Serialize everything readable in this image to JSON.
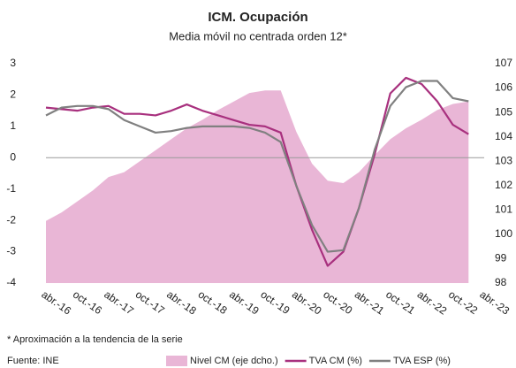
{
  "chart_data": {
    "type": "line",
    "title": "ICM. Ocupación",
    "subtitle": "Media móvil no centrada orden 12*",
    "note": "* Aproximación a la tendencia de la serie",
    "source": "Fuente: INE",
    "categories": [
      "abr.-16",
      null,
      "oct.-16",
      null,
      "abr.-17",
      null,
      "oct.-17",
      null,
      "abr.-18",
      null,
      "oct.-18",
      null,
      "abr.-19",
      null,
      "oct.-19",
      null,
      "abr.-20",
      null,
      "oct.-20",
      null,
      "abr.-21",
      null,
      "oct.-21",
      null,
      "abr.-22",
      null,
      "oct.-22",
      null,
      "abr.-23"
    ],
    "ylim": [
      -4,
      3
    ],
    "yticks": [
      -4,
      -3,
      -2,
      -1,
      0,
      1,
      2,
      3
    ],
    "y2lim": [
      98,
      107
    ],
    "y2ticks": [
      98,
      99,
      100,
      101,
      102,
      103,
      104,
      105,
      106,
      107
    ],
    "legend": "bottom",
    "series": [
      {
        "name": "Nivel CM (eje dcho.)",
        "type": "area",
        "axis": "y2",
        "color": "#e9b6d6",
        "values": [
          100.55,
          100.9,
          101.35,
          101.8,
          102.35,
          102.55,
          103.0,
          103.45,
          103.9,
          104.35,
          104.7,
          105.1,
          105.45,
          105.8,
          105.9,
          105.9,
          104.2,
          102.9,
          102.2,
          102.1,
          102.55,
          103.25,
          103.9,
          104.35,
          104.7,
          105.1,
          105.35,
          105.45,
          null
        ]
      },
      {
        "name": "TVA CM (%)",
        "type": "line",
        "color": "#a8307e",
        "values": [
          1.6,
          1.55,
          1.5,
          1.6,
          1.65,
          1.4,
          1.4,
          1.35,
          1.5,
          1.7,
          1.5,
          1.35,
          1.2,
          1.05,
          1.0,
          0.8,
          -0.9,
          -2.3,
          -3.45,
          -3.0,
          -1.6,
          0.1,
          2.05,
          2.55,
          2.35,
          1.8,
          1.05,
          0.75,
          null
        ]
      },
      {
        "name": "TVA ESP (%)",
        "type": "line",
        "color": "#808080",
        "values": [
          1.35,
          1.6,
          1.65,
          1.65,
          1.55,
          1.2,
          1.0,
          0.8,
          0.85,
          0.95,
          1.0,
          1.0,
          1.0,
          0.95,
          0.8,
          0.5,
          -0.9,
          -2.15,
          -3.0,
          -2.95,
          -1.6,
          0.25,
          1.65,
          2.25,
          2.45,
          2.45,
          1.9,
          1.8,
          null
        ]
      }
    ]
  }
}
